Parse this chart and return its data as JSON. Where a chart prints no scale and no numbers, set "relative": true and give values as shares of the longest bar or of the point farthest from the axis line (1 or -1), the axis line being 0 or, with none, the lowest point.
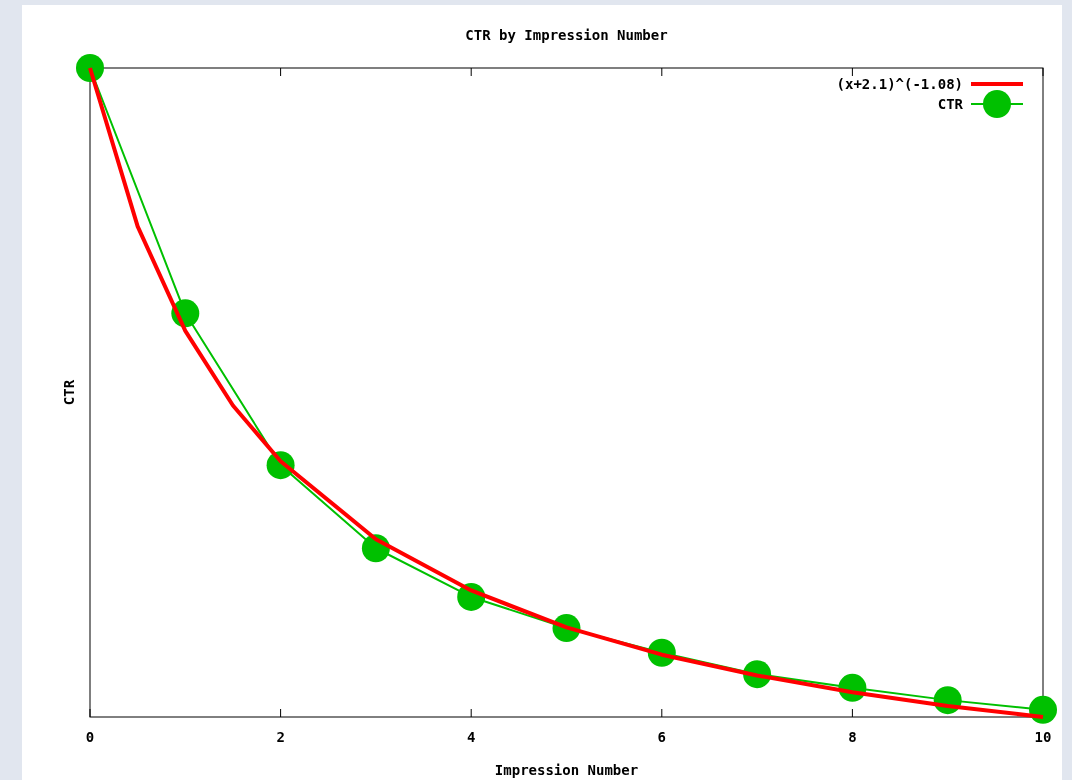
{
  "chart_data": {
    "type": "line",
    "title": "CTR by Impression Number",
    "xlabel": "Impression Number",
    "ylabel": "CTR",
    "relative": true,
    "xlim": [
      0,
      10
    ],
    "xticks": [
      0,
      2,
      4,
      6,
      8,
      10
    ],
    "tick_labels": "x",
    "grid": false,
    "legend": "top right",
    "line_style": "solid",
    "series": [
      {
        "name": "(x+2.1)^(-1.08)",
        "color": "#ff0000",
        "marker": "none",
        "x": [
          0,
          0.5,
          1,
          1.5,
          2,
          3,
          4,
          5,
          6,
          7,
          8,
          9,
          10
        ],
        "values": [
          1,
          0.756,
          0.595,
          0.48,
          0.394,
          0.274,
          0.195,
          0.138,
          0.096,
          0.064,
          0.038,
          0.017,
          0
        ]
      },
      {
        "name": "CTR",
        "color": "#00c000",
        "marker": "circle",
        "x": [
          0,
          1,
          2,
          3,
          4,
          5,
          6,
          7,
          8,
          9,
          10
        ],
        "values": [
          1,
          0.622,
          0.388,
          0.26,
          0.185,
          0.137,
          0.099,
          0.066,
          0.045,
          0.026,
          0.011
        ]
      }
    ]
  }
}
